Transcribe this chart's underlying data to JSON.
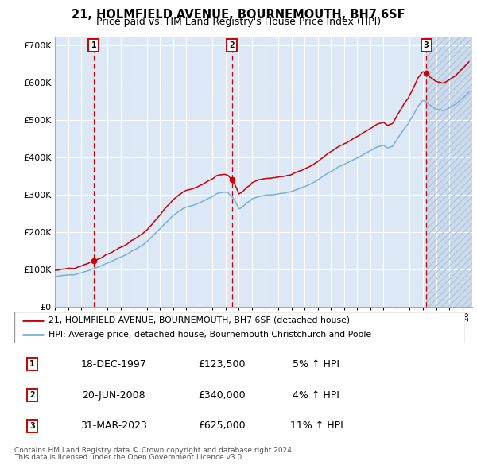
{
  "title": "21, HOLMFIELD AVENUE, BOURNEMOUTH, BH7 6SF",
  "subtitle": "Price paid vs. HM Land Registry's House Price Index (HPI)",
  "ylim": [
    0,
    720000
  ],
  "yticks": [
    0,
    100000,
    200000,
    300000,
    400000,
    500000,
    600000,
    700000
  ],
  "sale_dates": [
    "1997-12-18",
    "2008-06-20",
    "2023-03-31"
  ],
  "sale_prices": [
    123500,
    340000,
    625000
  ],
  "sale_labels": [
    "1",
    "2",
    "3"
  ],
  "legend_line1": "21, HOLMFIELD AVENUE, BOURNEMOUTH, BH7 6SF (detached house)",
  "legend_line2": "HPI: Average price, detached house, Bournemouth Christchurch and Poole",
  "table_rows": [
    [
      "1",
      "18-DEC-1997",
      "£123,500",
      "5% ↑ HPI"
    ],
    [
      "2",
      "20-JUN-2008",
      "£340,000",
      "4% ↑ HPI"
    ],
    [
      "3",
      "31-MAR-2023",
      "£625,000",
      "11% ↑ HPI"
    ]
  ],
  "footnote1": "Contains HM Land Registry data © Crown copyright and database right 2024.",
  "footnote2": "This data is licensed under the Open Government Licence v3.0.",
  "bg_color": "#dce8f5",
  "grid_color": "#ffffff",
  "line_red": "#cc0000",
  "line_blue": "#7bafd4",
  "dashed_color": "#cc0000",
  "hatch_bg": "#ccdaec"
}
